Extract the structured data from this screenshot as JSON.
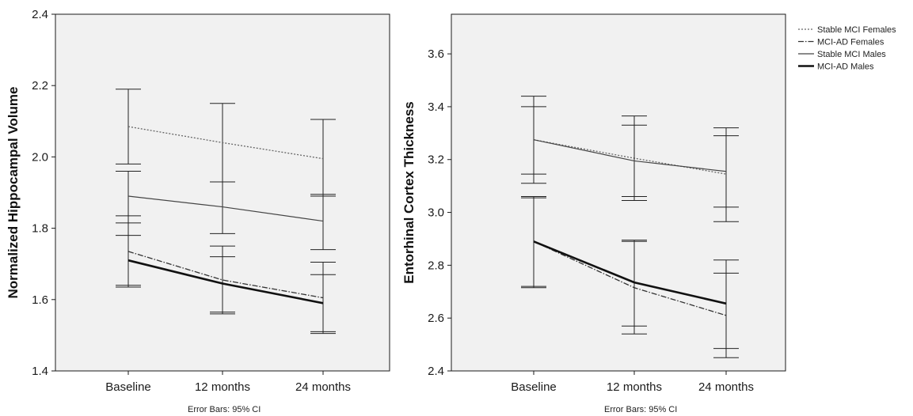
{
  "chart_data": [
    {
      "type": "line",
      "title": "",
      "xlabel": "",
      "ylabel": "Normalized Hippocampal Volume",
      "footnote": "Error Bars: 95% CI",
      "categories": [
        "Baseline",
        "12 months",
        "24 months"
      ],
      "ylim": [
        1.4,
        2.4
      ],
      "yticks": [
        "1.4",
        "1.6",
        "1.8",
        "2.0",
        "2.2",
        "2.4"
      ],
      "grid": false,
      "series": [
        {
          "name": "Stable MCI Females",
          "values": [
            2.085,
            2.04,
            1.995
          ],
          "ci_low": [
            1.98,
            1.93,
            1.89
          ],
          "ci_high": [
            2.19,
            2.15,
            2.105
          ],
          "style": "dotted",
          "color": "#666666"
        },
        {
          "name": "MCI-AD Females",
          "values": [
            1.735,
            1.655,
            1.605
          ],
          "ci_low": [
            1.635,
            1.565,
            1.505
          ],
          "ci_high": [
            1.835,
            1.75,
            1.705
          ],
          "style": "dashdot",
          "color": "#333333"
        },
        {
          "name": "Stable MCI Males",
          "values": [
            1.89,
            1.86,
            1.82
          ],
          "ci_low": [
            1.78,
            1.785,
            1.74
          ],
          "ci_high": [
            1.96,
            1.93,
            1.895
          ],
          "style": "solid-thin",
          "color": "#444444"
        },
        {
          "name": "MCI-AD Males",
          "values": [
            1.71,
            1.645,
            1.59
          ],
          "ci_low": [
            1.64,
            1.56,
            1.51
          ],
          "ci_high": [
            1.815,
            1.72,
            1.67
          ],
          "style": "solid-thick",
          "color": "#111111"
        }
      ]
    },
    {
      "type": "line",
      "title": "",
      "xlabel": "",
      "ylabel": "Entorhinal Cortex Thickness",
      "footnote": "Error Bars: 95% CI",
      "categories": [
        "Baseline",
        "12 months",
        "24 months"
      ],
      "ylim": [
        2.4,
        3.75
      ],
      "yticks": [
        "2.4",
        "2.6",
        "2.8",
        "3.0",
        "3.2",
        "3.4",
        "3.6"
      ],
      "grid": false,
      "legend_position": "outside-top-right",
      "series": [
        {
          "name": "Stable MCI Females",
          "values": [
            3.275,
            3.205,
            3.145
          ],
          "ci_low": [
            3.11,
            3.045,
            2.965
          ],
          "ci_high": [
            3.44,
            3.365,
            3.32
          ],
          "style": "dotted",
          "color": "#666666"
        },
        {
          "name": "MCI-AD Females",
          "values": [
            2.89,
            2.715,
            2.61
          ],
          "ci_low": [
            2.72,
            2.54,
            2.45
          ],
          "ci_high": [
            3.055,
            2.89,
            2.77
          ],
          "style": "dashdot",
          "color": "#333333"
        },
        {
          "name": "Stable MCI Males",
          "values": [
            3.275,
            3.195,
            3.155
          ],
          "ci_low": [
            3.145,
            3.06,
            3.02
          ],
          "ci_high": [
            3.4,
            3.33,
            3.29
          ],
          "style": "solid-thin",
          "color": "#444444"
        },
        {
          "name": "MCI-AD Males",
          "values": [
            2.89,
            2.735,
            2.655
          ],
          "ci_low": [
            2.715,
            2.57,
            2.485
          ],
          "ci_high": [
            3.06,
            2.895,
            2.82
          ],
          "style": "solid-thick",
          "color": "#111111"
        }
      ]
    }
  ]
}
